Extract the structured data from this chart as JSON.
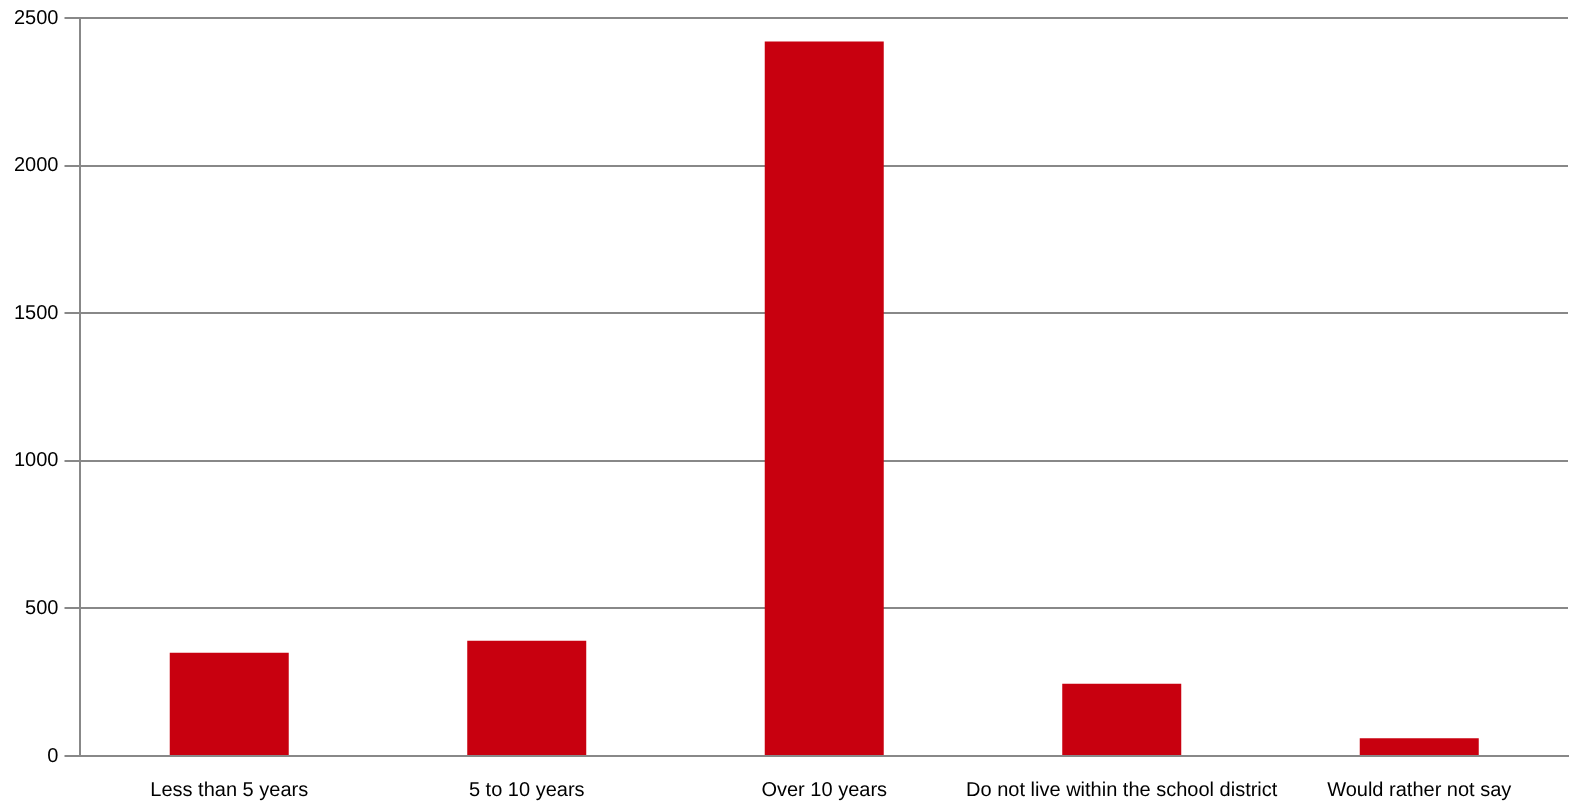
{
  "chart_data": {
    "type": "bar",
    "categories": [
      "Less than 5 years",
      "5 to 10 years",
      "Over 10 years",
      "Do not live within the school district",
      "Would rather not say"
    ],
    "values": [
      350,
      390,
      2420,
      245,
      60
    ],
    "color": "#c8000f",
    "ylim": [
      0,
      2500
    ],
    "yticks": [
      0,
      500,
      1000,
      1500,
      2000,
      2500
    ],
    "grid": "y",
    "legend": false
  }
}
